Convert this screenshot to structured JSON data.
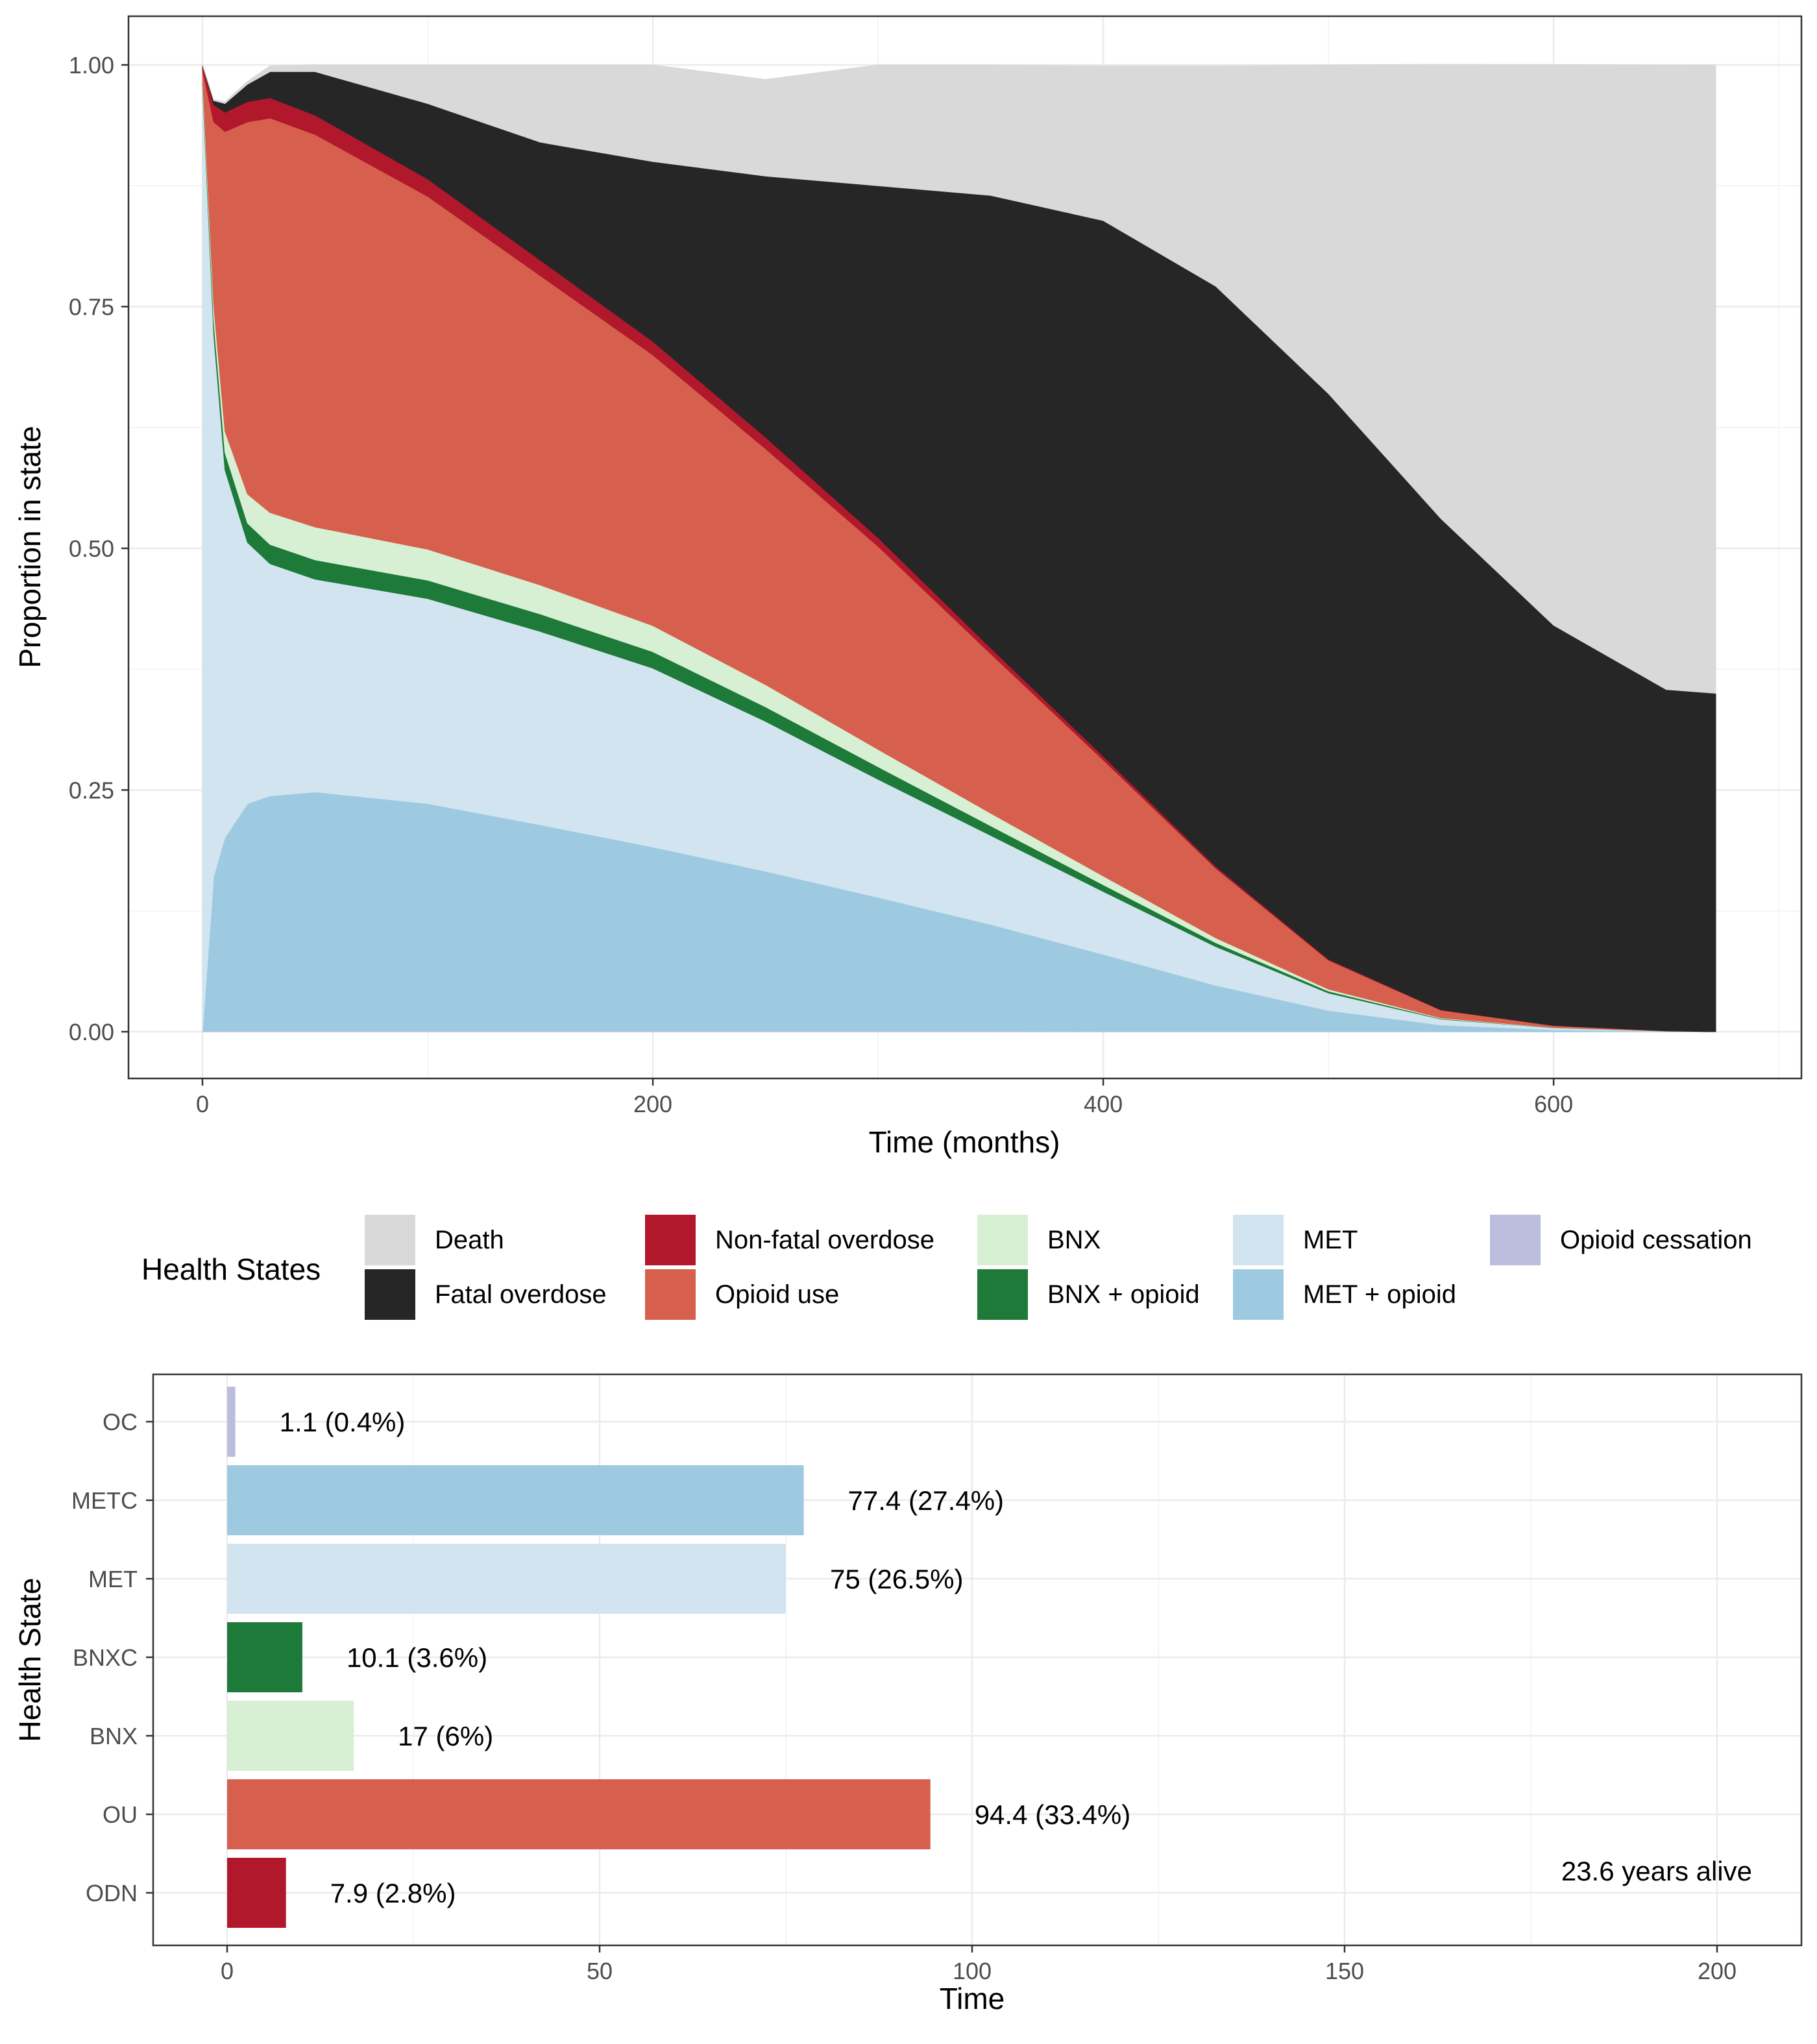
{
  "chart_data": [
    {
      "type": "area",
      "stacked": true,
      "xlabel": "Time (months)",
      "ylabel": "Proportion in state",
      "xlim": [
        0,
        672
      ],
      "ylim": [
        0,
        1
      ],
      "x_ticks": [
        0,
        200,
        400,
        600
      ],
      "y_ticks": [
        0,
        0.25,
        0.5,
        0.75,
        1
      ],
      "y_tick_labels": [
        "0.00",
        "0.25",
        "0.50",
        "0.75",
        "1.00"
      ],
      "grid": true,
      "x": [
        0,
        5,
        10,
        20,
        30,
        50,
        100,
        150,
        200,
        250,
        300,
        350,
        400,
        450,
        500,
        550,
        600,
        650,
        672
      ],
      "series": [
        {
          "name": "Opioid cessation",
          "color": "#BCBDDC",
          "values": [
            0,
            0.001,
            0.001,
            0.001,
            0.001,
            0.001,
            0.001,
            0.001,
            0.001,
            0.001,
            0.001,
            0.001,
            0,
            0,
            0,
            0,
            0,
            0,
            0
          ]
        },
        {
          "name": "MET + opioid",
          "color": "#9ECAE1",
          "values": [
            0,
            0.16,
            0.2,
            0.235,
            0.243,
            0.247,
            0.235,
            0.213,
            0.19,
            0.165,
            0.138,
            0.11,
            0.08,
            0.048,
            0.022,
            0.007,
            0.002,
            0.0003,
            0
          ]
        },
        {
          "name": "MET",
          "color": "#D2E4F0",
          "values": [
            0.98,
            0.56,
            0.38,
            0.27,
            0.24,
            0.22,
            0.212,
            0.2,
            0.185,
            0.155,
            0.122,
            0.092,
            0.065,
            0.04,
            0.018,
            0.006,
            0.002,
            0.0003,
            0
          ]
        },
        {
          "name": "BNX + opioid",
          "color": "#1D7A38",
          "values": [
            0.005,
            0.015,
            0.018,
            0.02,
            0.02,
            0.02,
            0.019,
            0.018,
            0.017,
            0.015,
            0.013,
            0.01,
            0.007,
            0.004,
            0.002,
            0.0006,
            0.0002,
            0,
            0
          ]
        },
        {
          "name": "BNX",
          "color": "#D7EFD3",
          "values": [
            0.005,
            0.015,
            0.022,
            0.03,
            0.033,
            0.034,
            0.032,
            0.03,
            0.027,
            0.023,
            0.018,
            0.013,
            0.009,
            0.005,
            0.002,
            0.0007,
            0.0002,
            0,
            0
          ]
        },
        {
          "name": "Opioid use",
          "color": "#D6604D",
          "values": [
            0.005,
            0.19,
            0.31,
            0.385,
            0.408,
            0.406,
            0.365,
            0.32,
            0.28,
            0.244,
            0.21,
            0.165,
            0.12,
            0.072,
            0.03,
            0.008,
            0.002,
            0.0003,
            0
          ]
        },
        {
          "name": "Non-fatal overdose",
          "color": "#B2182B",
          "values": [
            0.005,
            0.018,
            0.02,
            0.021,
            0.021,
            0.02,
            0.018,
            0.016,
            0.014,
            0.012,
            0.009,
            0.006,
            0.004,
            0.002,
            0.001,
            0.0003,
            0,
            0,
            0
          ]
        },
        {
          "name": "Fatal overdose",
          "color": "#262626",
          "values": [
            0,
            0.004,
            0.009,
            0.018,
            0.027,
            0.045,
            0.078,
            0.122,
            0.186,
            0.27,
            0.364,
            0.468,
            0.554,
            0.6,
            0.585,
            0.508,
            0.414,
            0.353,
            0.35
          ]
        },
        {
          "name": "Death",
          "color": "#D9D9D9",
          "values": [
            0,
            0.001,
            0.002,
            0.003,
            0.006,
            0.007,
            0.04,
            0.08,
            0.1,
            0.1,
            0.125,
            0.135,
            0.16,
            0.228,
            0.34,
            0.47,
            0.58,
            0.646,
            0.65
          ]
        }
      ],
      "legend": {
        "title": "Health States",
        "position": "bottom",
        "rows": [
          [
            "Death",
            "Non-fatal overdose",
            "BNX",
            "MET",
            "Opioid cessation"
          ],
          [
            "Fatal overdose",
            "Opioid use",
            "BNX + opioid",
            "MET + opioid"
          ]
        ]
      }
    },
    {
      "type": "bar",
      "orientation": "horizontal",
      "xlabel": "Time",
      "ylabel": "Health State",
      "xlim": [
        0,
        200
      ],
      "x_ticks": [
        0,
        50,
        100,
        150,
        200
      ],
      "grid": true,
      "categories": [
        "OC",
        "METC",
        "MET",
        "BNXC",
        "BNX",
        "OU",
        "ODN"
      ],
      "values": [
        1.1,
        77.4,
        75,
        10.1,
        17,
        94.4,
        7.9
      ],
      "labels": [
        "1.1 (0.4%)",
        "77.4 (27.4%)",
        "75 (26.5%)",
        "10.1 (3.6%)",
        "17 (6%)",
        "94.4 (33.4%)",
        "7.9 (2.8%)"
      ],
      "colors": [
        "#BCBDDC",
        "#9ECAE1",
        "#D2E4F0",
        "#1D7A38",
        "#D7EFD3",
        "#D6604D",
        "#B2182B"
      ],
      "annotation": "23.6 years alive"
    }
  ]
}
